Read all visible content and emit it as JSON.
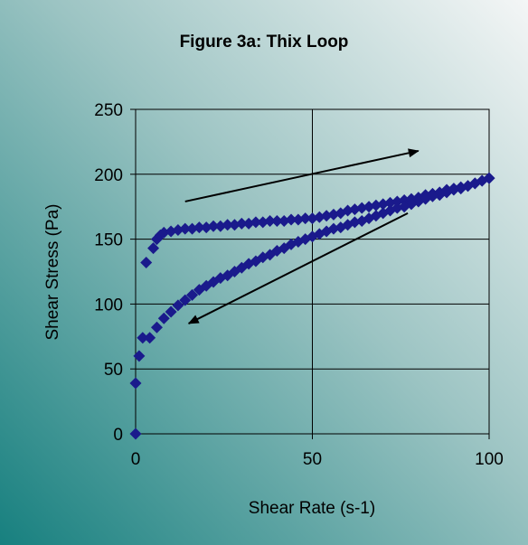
{
  "chart_data": {
    "type": "scatter",
    "title": "Figure 3a:  Thix Loop",
    "xlabel": "Shear Rate (s-1)",
    "ylabel": "Shear Stress (Pa)",
    "xlim": [
      0,
      100
    ],
    "ylim": [
      0,
      250
    ],
    "xticks": [
      0,
      50,
      100
    ],
    "yticks": [
      0,
      50,
      100,
      150,
      200,
      250
    ],
    "grid": true,
    "legend": "none",
    "marker": "diamond",
    "colors": {
      "marker": "#1a1a8c",
      "background_light": "#f4f6f6",
      "background_dark": "#17807f",
      "plot_frame": "#000000",
      "arrow": "#000000"
    },
    "series": [
      {
        "x": [
          0,
          0,
          1,
          2,
          3,
          5,
          6,
          7,
          8,
          10,
          12,
          14,
          16,
          18,
          20,
          22,
          24,
          26,
          28,
          30,
          32,
          34,
          36,
          38,
          40,
          42,
          44,
          46,
          48,
          50,
          52,
          54,
          56,
          58,
          60,
          62,
          64,
          66,
          68,
          70,
          72,
          74,
          76,
          78,
          80,
          82,
          84,
          86,
          88,
          90,
          92,
          94,
          96,
          98,
          100
        ],
        "y": [
          0,
          39,
          60,
          74,
          132,
          143,
          150,
          153,
          155,
          156,
          157,
          158,
          158,
          159,
          159,
          160,
          160,
          161,
          161,
          162,
          162,
          163,
          163,
          164,
          164,
          164,
          165,
          165,
          166,
          166,
          167,
          168,
          169,
          170,
          172,
          173,
          174,
          175,
          176,
          177,
          178,
          179,
          180,
          181,
          182,
          184,
          185,
          186,
          188,
          189,
          190,
          191,
          193,
          195,
          197
        ]
      },
      {
        "x": [
          100,
          98,
          96,
          94,
          92,
          90,
          88,
          86,
          84,
          82,
          80,
          78,
          76,
          74,
          72,
          70,
          68,
          66,
          64,
          62,
          60,
          58,
          56,
          54,
          52,
          50,
          48,
          46,
          44,
          42,
          40,
          38,
          36,
          34,
          32,
          30,
          28,
          26,
          24,
          22,
          20,
          18,
          16,
          14,
          12,
          10,
          8,
          6,
          4
        ],
        "y": [
          197,
          195,
          193,
          191,
          189,
          188,
          186,
          184,
          183,
          181,
          179,
          177,
          175,
          174,
          172,
          170,
          168,
          166,
          164,
          163,
          161,
          159,
          158,
          156,
          154,
          152,
          150,
          148,
          146,
          143,
          141,
          138,
          136,
          133,
          131,
          128,
          125,
          122,
          120,
          117,
          114,
          111,
          107,
          103,
          99,
          94,
          89,
          82,
          74
        ]
      }
    ],
    "annotations": [
      {
        "type": "arrow",
        "from": [
          14,
          179
        ],
        "to": [
          80,
          218
        ]
      },
      {
        "type": "arrow",
        "from": [
          77,
          170
        ],
        "to": [
          15,
          85
        ]
      }
    ]
  }
}
